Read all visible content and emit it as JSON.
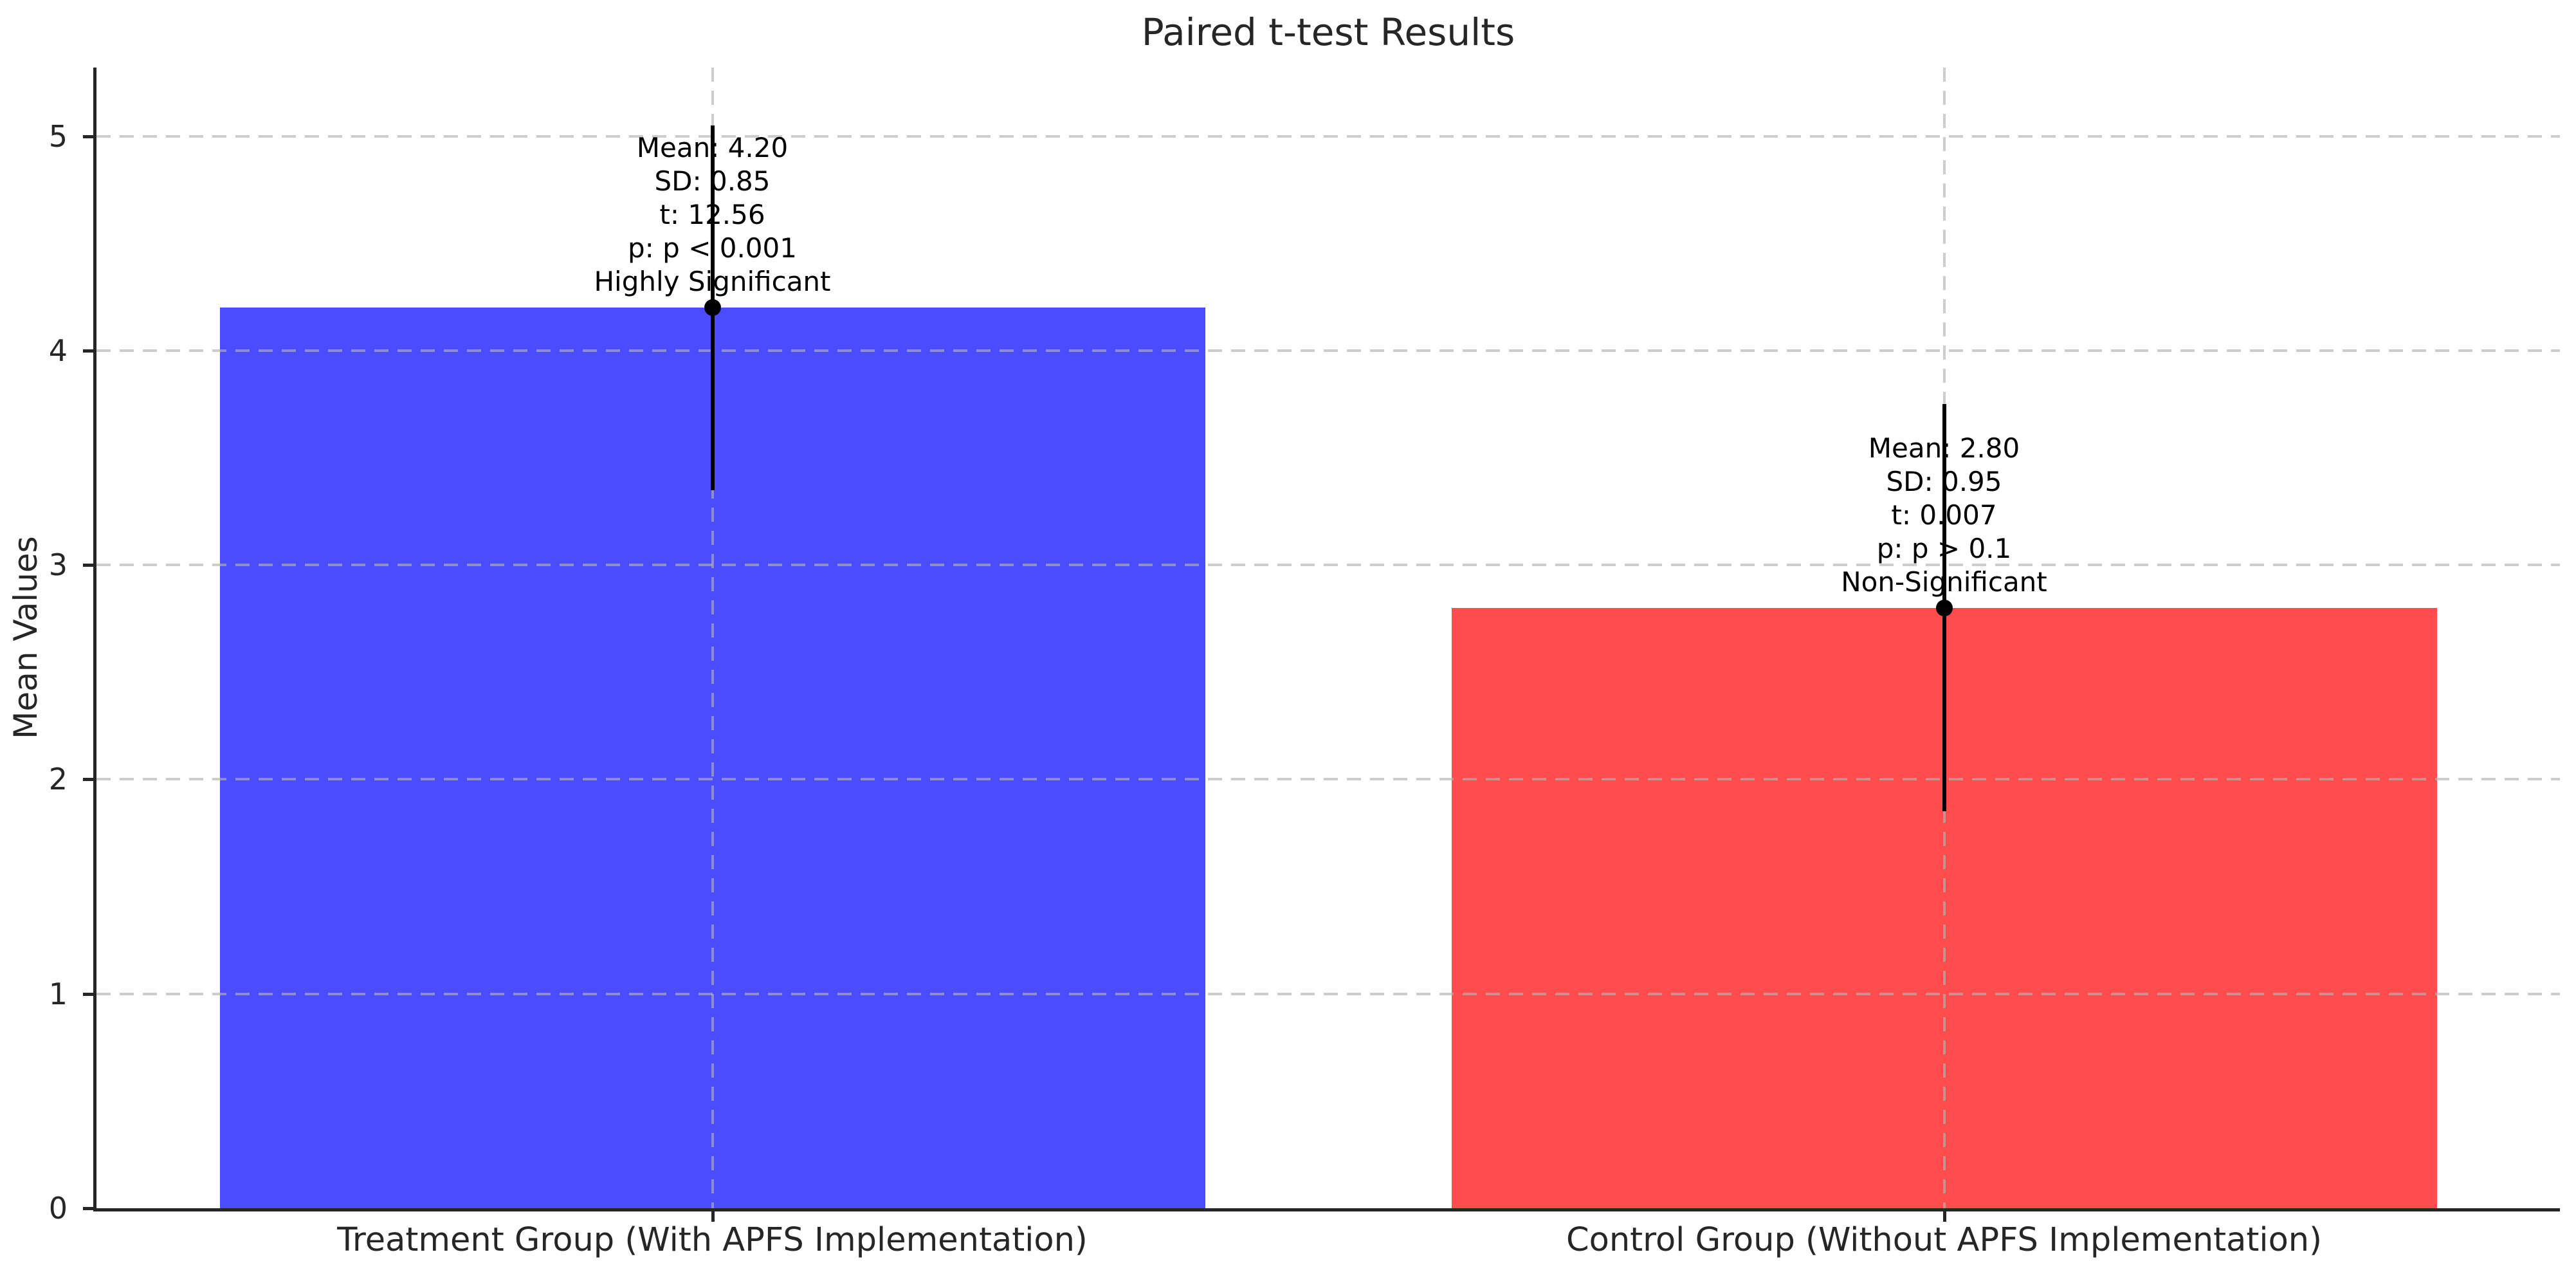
{
  "chart_data": {
    "type": "bar",
    "title": "Paired t-test Results",
    "xlabel": "",
    "ylabel": "Mean Values",
    "ylim": [
      0,
      5.32
    ],
    "yticks": [
      0,
      1,
      2,
      3,
      4,
      5
    ],
    "grid": {
      "visible": true,
      "style": "dashed",
      "axis": "both",
      "color": "#c8c8c8",
      "drawn_above_bars": true
    },
    "legend_position": "none",
    "categories": [
      "Treatment Group (With APFS Implementation)",
      "Control Group (Without APFS Implementation)"
    ],
    "series": [
      {
        "name": "Treatment Group (With APFS Implementation)",
        "mean": 4.2,
        "sd": 0.85,
        "t": 12.56,
        "p": "p < 0.001",
        "significance": "Highly Significant",
        "bar_color": "#0000ff",
        "bar_alpha": 0.7,
        "annotation_lines": [
          "Mean: 4.20",
          "SD: 0.85",
          "t: 12.56",
          "p: p < 0.001",
          "Highly Significant"
        ]
      },
      {
        "name": "Control Group (Without APFS Implementation)",
        "mean": 2.8,
        "sd": 0.95,
        "t": 0.007,
        "p": "p > 0.1",
        "significance": "Non-Significant",
        "bar_color": "#ff0000",
        "bar_alpha": 0.7,
        "annotation_lines": [
          "Mean: 2.80",
          "SD: 0.95",
          "t: 0.007",
          "p: p > 0.1",
          "Non-Significant"
        ]
      }
    ],
    "error_bar": {
      "extent": "mean ± SD",
      "color": "#000000",
      "marker": "filled circle at mean",
      "caps": false
    },
    "colors": {
      "axis_text": "#262626",
      "annotation_text": "#000000",
      "grid": "#c8c8c8"
    }
  }
}
